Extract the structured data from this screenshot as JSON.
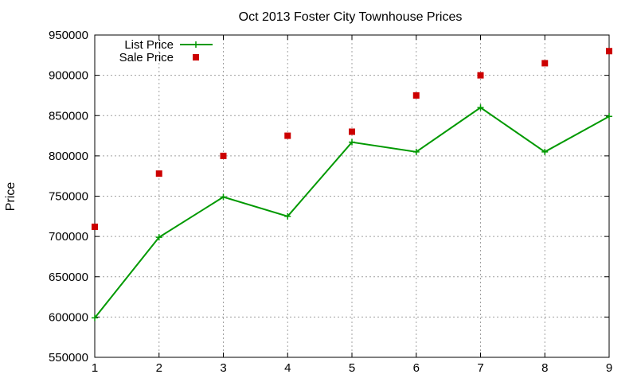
{
  "chart_data": {
    "type": "line",
    "title": "Oct 2013 Foster City Townhouse Prices",
    "xlabel": "",
    "ylabel": "Price",
    "x": [
      1,
      2,
      3,
      4,
      5,
      6,
      7,
      8,
      9
    ],
    "xlim": [
      1,
      9
    ],
    "ylim": [
      550000,
      950000
    ],
    "x_ticks": [
      1,
      2,
      3,
      4,
      5,
      6,
      7,
      8,
      9
    ],
    "y_ticks": [
      550000,
      600000,
      650000,
      700000,
      750000,
      800000,
      850000,
      900000,
      950000
    ],
    "grid": true,
    "legend_position": "top-left",
    "series": [
      {
        "name": "List Price",
        "style": "lines+points",
        "marker": "plus",
        "color": "#009900",
        "values": [
          599000,
          699000,
          749000,
          725000,
          817000,
          805000,
          860000,
          805000,
          849000
        ]
      },
      {
        "name": "Sale Price",
        "style": "points",
        "marker": "square",
        "color": "#cc0000",
        "values": [
          712000,
          778000,
          800000,
          825000,
          830000,
          875000,
          900000,
          915000,
          930000
        ]
      }
    ]
  }
}
